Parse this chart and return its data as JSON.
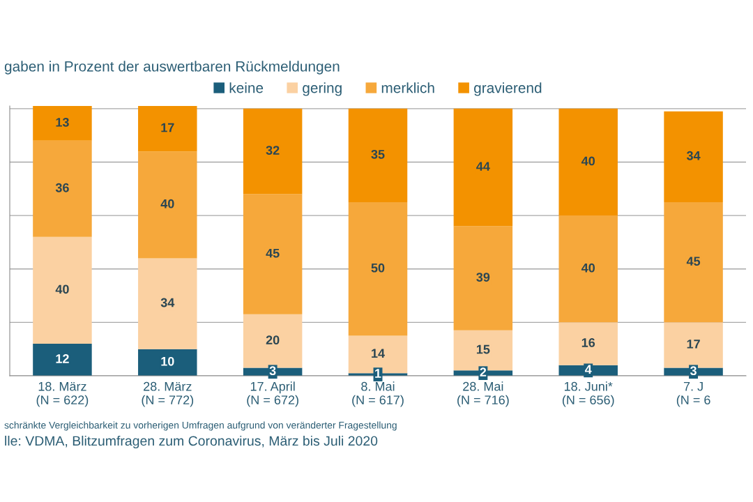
{
  "chart_data": {
    "type": "bar",
    "title": "gaben in Prozent der auswertbaren Rückmeldungen",
    "categories": [
      "18. März\n(N = 622)",
      "28. März\n(N = 772)",
      "17. April\n(N = 672)",
      "8. Mai\n(N = 617)",
      "28. Mai\n(N = 716)",
      "18. Juni*\n(N = 656)",
      "7. J\n(N = 6"
    ],
    "series": [
      {
        "name": "keine",
        "color": "#1b5e7b",
        "values": [
          12,
          10,
          3,
          1,
          2,
          4,
          3
        ]
      },
      {
        "name": "gering",
        "color": "#fbd1a2",
        "values": [
          40,
          34,
          20,
          14,
          15,
          16,
          17
        ]
      },
      {
        "name": "merklich",
        "color": "#f6a83b",
        "values": [
          36,
          40,
          45,
          50,
          39,
          40,
          45
        ]
      },
      {
        "name": "gravierend",
        "color": "#f39200",
        "values": [
          13,
          17,
          32,
          35,
          44,
          40,
          34
        ]
      }
    ],
    "stacked": true,
    "data_labels": true,
    "ylim": [
      0,
      101
    ],
    "yticks": [
      {
        "value": 0,
        "label": null
      },
      {
        "value": 20,
        "label": null
      },
      {
        "value": 40,
        "label": null
      },
      {
        "value": 60,
        "label": null
      },
      {
        "value": 80,
        "label": null
      },
      {
        "value": 100,
        "label": null
      }
    ],
    "tick_labels": "x",
    "grid": "y",
    "legend": "top",
    "annotations": [
      "schränkte Vergleichbarkeit zu vorherigen Umfragen aufgrund von veränderter Fragestellung",
      "lle: VDMA, Blitzumfragen zum Coronavirus, März bis Juli 2020"
    ]
  }
}
